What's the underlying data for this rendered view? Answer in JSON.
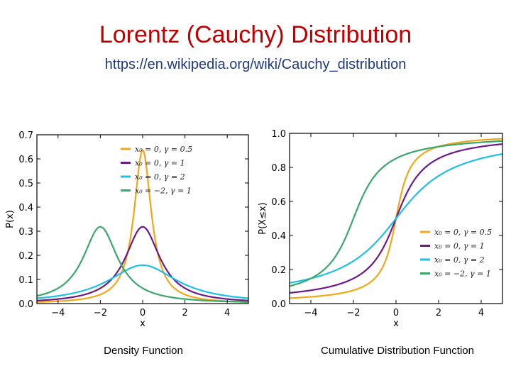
{
  "slide": {
    "title": "Lorentz (Cauchy) Distribution",
    "subtitle": "https://en.wikipedia.org/wiki/Cauchy_distribution",
    "captions": [
      "Density Function",
      "Cumulative Distribution Function"
    ]
  },
  "chart_data": [
    {
      "type": "line",
      "function": "pdf",
      "xlabel": "x",
      "ylabel": "P(x)",
      "xlim": [
        -5,
        5
      ],
      "ylim": [
        0,
        0.7
      ],
      "xticks": [
        -4,
        -2,
        0,
        2,
        4
      ],
      "xtick_labels": [
        "−4",
        "−2",
        "0",
        "2",
        "4"
      ],
      "yticks": [
        0.0,
        0.1,
        0.2,
        0.3,
        0.4,
        0.5,
        0.6,
        0.7
      ],
      "ytick_labels": [
        "0.0",
        "0.1",
        "0.2",
        "0.3",
        "0.4",
        "0.5",
        "0.6",
        "0.7"
      ],
      "legend_position": "top-right",
      "grid": false,
      "series": [
        {
          "name": "x0 = 0, γ = 0.5",
          "legend": "x₀ = 0,  γ = 0.5",
          "x0": 0,
          "gamma": 0.5,
          "color": "#f0a818"
        },
        {
          "name": "x0 = 0, γ = 1",
          "legend": "x₀ = 0,  γ = 1",
          "x0": 0,
          "gamma": 1,
          "color": "#6a1a8a"
        },
        {
          "name": "x0 = 0, γ = 2",
          "legend": "x₀ = 0,  γ = 2",
          "x0": 0,
          "gamma": 2,
          "color": "#1ec0e8"
        },
        {
          "name": "x0 = −2, γ = 1",
          "legend": "x₀ = −2,  γ = 1",
          "x0": -2,
          "gamma": 1,
          "color": "#3aa86a"
        }
      ]
    },
    {
      "type": "line",
      "function": "cdf",
      "xlabel": "x",
      "ylabel": "P(X≤x)",
      "xlim": [
        -5,
        5
      ],
      "ylim": [
        0,
        1.0
      ],
      "xticks": [
        -4,
        -2,
        0,
        2,
        4
      ],
      "xtick_labels": [
        "−4",
        "−2",
        "0",
        "2",
        "4"
      ],
      "yticks": [
        0.0,
        0.2,
        0.4,
        0.6,
        0.8,
        1.0
      ],
      "ytick_labels": [
        "0.0",
        "0.2",
        "0.4",
        "0.6",
        "0.8",
        "1.0"
      ],
      "legend_position": "bottom-right",
      "grid": false,
      "series": [
        {
          "name": "x0 = 0, γ = 0.5",
          "legend": "x₀ = 0,  γ = 0.5",
          "x0": 0,
          "gamma": 0.5,
          "color": "#f0a818"
        },
        {
          "name": "x0 = 0, γ = 1",
          "legend": "x₀ = 0,  γ = 1",
          "x0": 0,
          "gamma": 1,
          "color": "#6a1a8a"
        },
        {
          "name": "x0 = 0, γ = 2",
          "legend": "x₀ = 0,  γ = 2",
          "x0": 0,
          "gamma": 2,
          "color": "#1ec0e8"
        },
        {
          "name": "x0 = −2, γ = 1",
          "legend": "x₀ = −2,  γ = 1",
          "x0": -2,
          "gamma": 1,
          "color": "#3aa86a"
        }
      ]
    }
  ]
}
